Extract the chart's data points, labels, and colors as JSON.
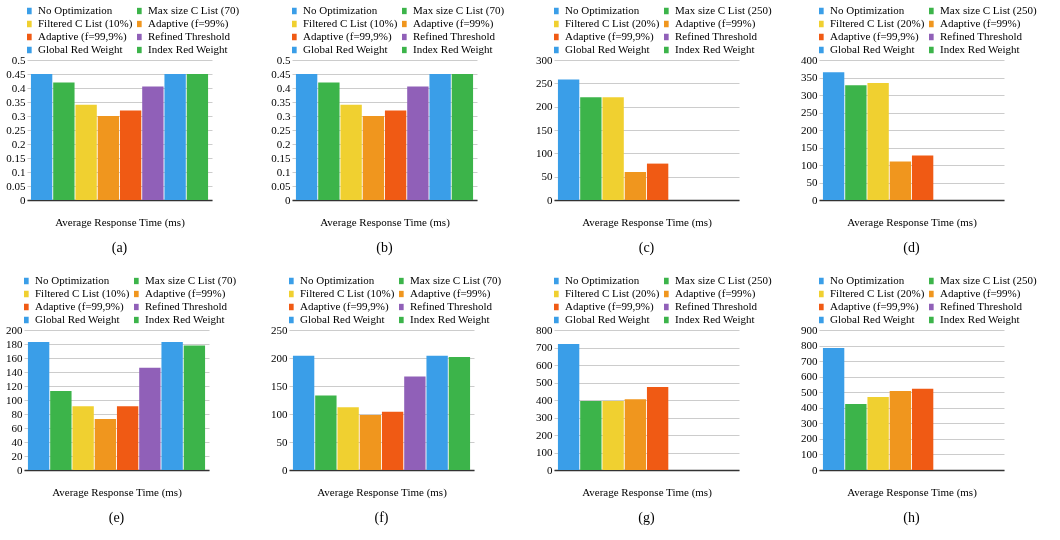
{
  "chart_data": [
    {
      "type": "bar",
      "xlabel": "Average Response Time (ms)",
      "categories": [
        null
      ],
      "ylim": [
        0,
        0.5
      ],
      "yticks": [
        0,
        0.05,
        0.1,
        0.15,
        0.2,
        0.25,
        0.3,
        0.35,
        0.4,
        0.45,
        0.5
      ],
      "grid": "y",
      "legend": "top",
      "annotations": [
        "(a)"
      ],
      "series": [
        {
          "name": "No Optimization",
          "color": "#3a9ee8",
          "values": [
            0.45
          ]
        },
        {
          "name": "Max size C List (70)",
          "color": "#3cb44a",
          "values": [
            0.42
          ]
        },
        {
          "name": "Filtered C List (10%)",
          "color": "#f0d030",
          "values": [
            0.34
          ]
        },
        {
          "name": "Adaptive (f=99%)",
          "color": "#f0961e",
          "values": [
            0.3
          ]
        },
        {
          "name": "Adaptive (f=99,9%)",
          "color": "#f05a14",
          "values": [
            0.32
          ]
        },
        {
          "name": "Refined Threshold",
          "color": "#9060b8",
          "values": [
            0.405
          ]
        },
        {
          "name": "Global Red Weight",
          "color": "#3a9ee8",
          "values": [
            0.45
          ]
        },
        {
          "name": "Index Red Weight",
          "color": "#3cb44a",
          "values": [
            0.45
          ]
        }
      ]
    },
    {
      "type": "bar",
      "xlabel": "Average Response Time (ms)",
      "categories": [
        null
      ],
      "ylim": [
        0,
        0.5
      ],
      "yticks": [
        0,
        0.05,
        0.1,
        0.15,
        0.2,
        0.25,
        0.3,
        0.35,
        0.4,
        0.45,
        0.5
      ],
      "grid": "y",
      "legend": "top",
      "annotations": [
        "(b)"
      ],
      "series": [
        {
          "name": "No Optimization",
          "color": "#3a9ee8",
          "values": [
            0.45
          ]
        },
        {
          "name": "Max size C List (70)",
          "color": "#3cb44a",
          "values": [
            0.42
          ]
        },
        {
          "name": "Filtered C List (10%)",
          "color": "#f0d030",
          "values": [
            0.34
          ]
        },
        {
          "name": "Adaptive (f=99%)",
          "color": "#f0961e",
          "values": [
            0.3
          ]
        },
        {
          "name": "Adaptive (f=99,9%)",
          "color": "#f05a14",
          "values": [
            0.32
          ]
        },
        {
          "name": "Refined Threshold",
          "color": "#9060b8",
          "values": [
            0.405
          ]
        },
        {
          "name": "Global Red Weight",
          "color": "#3a9ee8",
          "values": [
            0.45
          ]
        },
        {
          "name": "Index Red Weight",
          "color": "#3cb44a",
          "values": [
            0.45
          ]
        }
      ]
    },
    {
      "type": "bar",
      "xlabel": "Average Response Time (ms)",
      "categories": [
        null
      ],
      "ylim": [
        0,
        300
      ],
      "yticks": [
        0,
        50,
        100,
        150,
        200,
        250,
        300
      ],
      "grid": "y",
      "legend": "top",
      "annotations": [
        "(c)"
      ],
      "series": [
        {
          "name": "No Optimization",
          "color": "#3a9ee8",
          "values": [
            258
          ]
        },
        {
          "name": "Max size C List (250)",
          "color": "#3cb44a",
          "values": [
            220
          ]
        },
        {
          "name": "Filtered C List (20%)",
          "color": "#f0d030",
          "values": [
            220
          ]
        },
        {
          "name": "Adaptive (f=99%)",
          "color": "#f0961e",
          "values": [
            60
          ]
        },
        {
          "name": "Adaptive (f=99,9%)",
          "color": "#f05a14",
          "values": [
            78
          ]
        },
        {
          "name": "Refined Threshold",
          "color": "#9060b8",
          "values": [
            null
          ]
        },
        {
          "name": "Global Red Weight",
          "color": "#3a9ee8",
          "values": [
            null
          ]
        },
        {
          "name": "Index Red Weight",
          "color": "#3cb44a",
          "values": [
            null
          ]
        }
      ]
    },
    {
      "type": "bar",
      "xlabel": "Average Response Time (ms)",
      "categories": [
        null
      ],
      "ylim": [
        0,
        400
      ],
      "yticks": [
        0,
        50,
        100,
        150,
        200,
        250,
        300,
        350,
        400
      ],
      "grid": "y",
      "legend": "top",
      "annotations": [
        "(d)"
      ],
      "series": [
        {
          "name": "No Optimization",
          "color": "#3a9ee8",
          "values": [
            365
          ]
        },
        {
          "name": "Max size C List (250)",
          "color": "#3cb44a",
          "values": [
            328
          ]
        },
        {
          "name": "Filtered C List (20%)",
          "color": "#f0d030",
          "values": [
            334
          ]
        },
        {
          "name": "Adaptive (f=99%)",
          "color": "#f0961e",
          "values": [
            110
          ]
        },
        {
          "name": "Adaptive (f=99,9%)",
          "color": "#f05a14",
          "values": [
            127
          ]
        },
        {
          "name": "Refined Threshold",
          "color": "#9060b8",
          "values": [
            null
          ]
        },
        {
          "name": "Global Red Weight",
          "color": "#3a9ee8",
          "values": [
            null
          ]
        },
        {
          "name": "Index Red Weight",
          "color": "#3cb44a",
          "values": [
            null
          ]
        }
      ]
    },
    {
      "type": "bar",
      "xlabel": "Average Response Time (ms)",
      "categories": [
        null
      ],
      "ylim": [
        0,
        200
      ],
      "yticks": [
        0,
        20,
        40,
        60,
        80,
        100,
        120,
        140,
        160,
        180,
        200
      ],
      "grid": "y",
      "legend": "top",
      "annotations": [
        "(e)"
      ],
      "series": [
        {
          "name": "No Optimization",
          "color": "#3a9ee8",
          "values": [
            183
          ]
        },
        {
          "name": "Max size C List (70)",
          "color": "#3cb44a",
          "values": [
            113
          ]
        },
        {
          "name": "Filtered C List (10%)",
          "color": "#f0d030",
          "values": [
            91
          ]
        },
        {
          "name": "Adaptive (f=99%)",
          "color": "#f0961e",
          "values": [
            73
          ]
        },
        {
          "name": "Adaptive (f=99,9%)",
          "color": "#f05a14",
          "values": [
            91
          ]
        },
        {
          "name": "Refined Threshold",
          "color": "#9060b8",
          "values": [
            146
          ]
        },
        {
          "name": "Global Red Weight",
          "color": "#3a9ee8",
          "values": [
            183
          ]
        },
        {
          "name": "Index Red Weight",
          "color": "#3cb44a",
          "values": [
            178
          ]
        }
      ]
    },
    {
      "type": "bar",
      "xlabel": "Average Response Time (ms)",
      "categories": [
        null
      ],
      "ylim": [
        0,
        250
      ],
      "yticks": [
        0,
        50,
        100,
        150,
        200,
        250
      ],
      "grid": "y",
      "legend": "top",
      "annotations": [
        "(f)"
      ],
      "series": [
        {
          "name": "No Optimization",
          "color": "#3a9ee8",
          "values": [
            204
          ]
        },
        {
          "name": "Max size C List (70)",
          "color": "#3cb44a",
          "values": [
            133
          ]
        },
        {
          "name": "Filtered C List (10%)",
          "color": "#f0d030",
          "values": [
            112
          ]
        },
        {
          "name": "Adaptive (f=99%)",
          "color": "#f0961e",
          "values": [
            98
          ]
        },
        {
          "name": "Adaptive (f=99,9%)",
          "color": "#f05a14",
          "values": [
            104
          ]
        },
        {
          "name": "Refined Threshold",
          "color": "#9060b8",
          "values": [
            167
          ]
        },
        {
          "name": "Global Red Weight",
          "color": "#3a9ee8",
          "values": [
            204
          ]
        },
        {
          "name": "Index Red Weight",
          "color": "#3cb44a",
          "values": [
            202
          ]
        }
      ]
    },
    {
      "type": "bar",
      "xlabel": "Average Response Time (ms)",
      "categories": [
        null
      ],
      "ylim": [
        0,
        800
      ],
      "yticks": [
        0,
        100,
        200,
        300,
        400,
        500,
        600,
        700,
        800
      ],
      "grid": "y",
      "legend": "top",
      "annotations": [
        "(g)"
      ],
      "series": [
        {
          "name": "No Optimization",
          "color": "#3a9ee8",
          "values": [
            720
          ]
        },
        {
          "name": "Max size C List (250)",
          "color": "#3cb44a",
          "values": [
            395
          ]
        },
        {
          "name": "Filtered C List (20%)",
          "color": "#f0d030",
          "values": [
            395
          ]
        },
        {
          "name": "Adaptive (f=99%)",
          "color": "#f0961e",
          "values": [
            405
          ]
        },
        {
          "name": "Adaptive (f=99,9%)",
          "color": "#f05a14",
          "values": [
            475
          ]
        },
        {
          "name": "Refined Threshold",
          "color": "#9060b8",
          "values": [
            null
          ]
        },
        {
          "name": "Global Red Weight",
          "color": "#3a9ee8",
          "values": [
            null
          ]
        },
        {
          "name": "Index Red Weight",
          "color": "#3cb44a",
          "values": [
            null
          ]
        }
      ]
    },
    {
      "type": "bar",
      "xlabel": "Average Response Time (ms)",
      "categories": [
        null
      ],
      "ylim": [
        0,
        900
      ],
      "yticks": [
        0,
        100,
        200,
        300,
        400,
        500,
        600,
        700,
        800,
        900
      ],
      "grid": "y",
      "legend": "top",
      "annotations": [
        "(h)"
      ],
      "series": [
        {
          "name": "No Optimization",
          "color": "#3a9ee8",
          "values": [
            785
          ]
        },
        {
          "name": "Max size C List (250)",
          "color": "#3cb44a",
          "values": [
            425
          ]
        },
        {
          "name": "Filtered C List (20%)",
          "color": "#f0d030",
          "values": [
            470
          ]
        },
        {
          "name": "Adaptive (f=99%)",
          "color": "#f0961e",
          "values": [
            508
          ]
        },
        {
          "name": "Adaptive (f=99,9%)",
          "color": "#f05a14",
          "values": [
            522
          ]
        },
        {
          "name": "Refined Threshold",
          "color": "#9060b8",
          "values": [
            null
          ]
        },
        {
          "name": "Global Red Weight",
          "color": "#3a9ee8",
          "values": [
            null
          ]
        },
        {
          "name": "Index Red Weight",
          "color": "#3cb44a",
          "values": [
            null
          ]
        }
      ]
    }
  ]
}
